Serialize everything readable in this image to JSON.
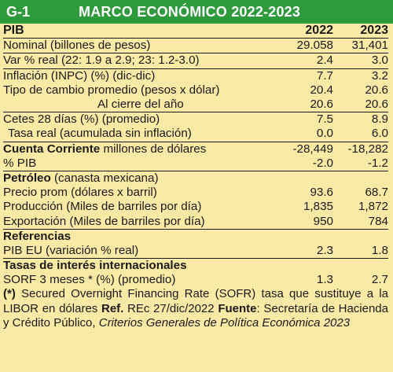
{
  "header": {
    "code": "G-1",
    "title": "MARCO ECONÓMICO  2022-2023"
  },
  "columns": {
    "label": "PIB",
    "y1": "2022",
    "y2": "2023"
  },
  "rows": [
    {
      "label": "Nominal (billones de pesos)",
      "v1": "29.058",
      "v2": "31,401"
    },
    {
      "label": "Var % real (22: 1.9 a 2.9; 23: 1.2-3.0)",
      "v1": "2.4",
      "v2": "3.0"
    },
    {
      "label": "Inflación (INPC) (%) (dic-dic)",
      "v1": "7.7",
      "v2": "3.2"
    },
    {
      "label": "Tipo de cambio promedio (pesos x dólar)",
      "v1": "20.4",
      "v2": "20.6"
    },
    {
      "label": "Al cierre del año",
      "v1": "20.6",
      "v2": "20.6"
    },
    {
      "label": "Cetes 28 días (%) (promedio)",
      "v1": "7.5",
      "v2": "8.9"
    },
    {
      "label": "Tasa real (acumulada sin inflación)",
      "v1": "0.0",
      "v2": "6.0"
    },
    {
      "label_bold": "Cuenta Corriente",
      "label_rest": " millones de dólares",
      "v1": "-28,449",
      "v2": "-18,282"
    },
    {
      "label": "% PIB",
      "v1": "-2.0",
      "v2": "-1.2"
    },
    {
      "label_bold": "Petróleo",
      "label_rest": " (canasta mexicana)"
    },
    {
      "label": "Precio prom (dólares x barril)",
      "v1": "93.6",
      "v2": "68.7"
    },
    {
      "label": "Producción (Miles de barriles por día)",
      "v1": "1,835",
      "v2": "1,872"
    },
    {
      "label": "Exportación (Miles de barriles por día)",
      "v1": "950",
      "v2": "784"
    },
    {
      "label_bold": "Referencias"
    },
    {
      "label": "PIB EU (variación % real)",
      "v1": "2.3",
      "v2": "1.8"
    },
    {
      "label_bold": "Tasas de interés internacionales"
    },
    {
      "label": "SORF 3 meses * (%) (promedio)",
      "v1": "1.3",
      "v2": "2.7"
    }
  ],
  "note": {
    "star": "(*)",
    "text1": " Secured Overnight Financing Rate (SOFR) tasa que sustituye a la LIBOR en dólares ",
    "ref_label": "Ref.",
    "ref_text": " REc 27/dic/2022 ",
    "source_label": "Fuente",
    "source_text": ": Secretaría de Hacienda y Crédito Público, ",
    "source_italic": "Criterios Generales de Política Económica 2023"
  }
}
